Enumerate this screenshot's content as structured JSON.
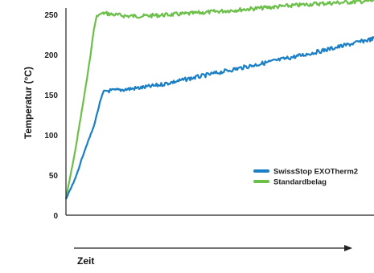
{
  "chart_data": {
    "type": "line",
    "title": "",
    "xlabel": "Zeit",
    "ylabel": "Temperatur (°C)",
    "ylim": [
      0,
      260
    ],
    "yticks": [
      0,
      50,
      100,
      150,
      200,
      250
    ],
    "xlim": [
      0,
      100
    ],
    "grid": false,
    "legend_position": "right",
    "series": [
      {
        "name": "SwissStop EXOTherm2",
        "color": "#1a7fc4",
        "x": [
          0,
          3,
          6,
          9,
          11,
          12,
          13,
          15,
          20,
          25,
          30,
          40,
          50,
          60,
          70,
          80,
          90,
          100
        ],
        "y": [
          20,
          45,
          80,
          110,
          140,
          152,
          155,
          155,
          157,
          159,
          162,
          170,
          178,
          186,
          194,
          202,
          211,
          220
        ]
      },
      {
        "name": "Standardbelag",
        "color": "#6cc04a",
        "x": [
          0,
          3,
          6,
          8,
          9,
          10,
          12,
          15,
          20,
          25,
          30,
          40,
          50,
          60,
          70,
          80,
          90,
          100
        ],
        "y": [
          20,
          80,
          150,
          200,
          230,
          248,
          252,
          250,
          248,
          248,
          249,
          251,
          254,
          257,
          260,
          263,
          265,
          267
        ]
      }
    ]
  }
}
